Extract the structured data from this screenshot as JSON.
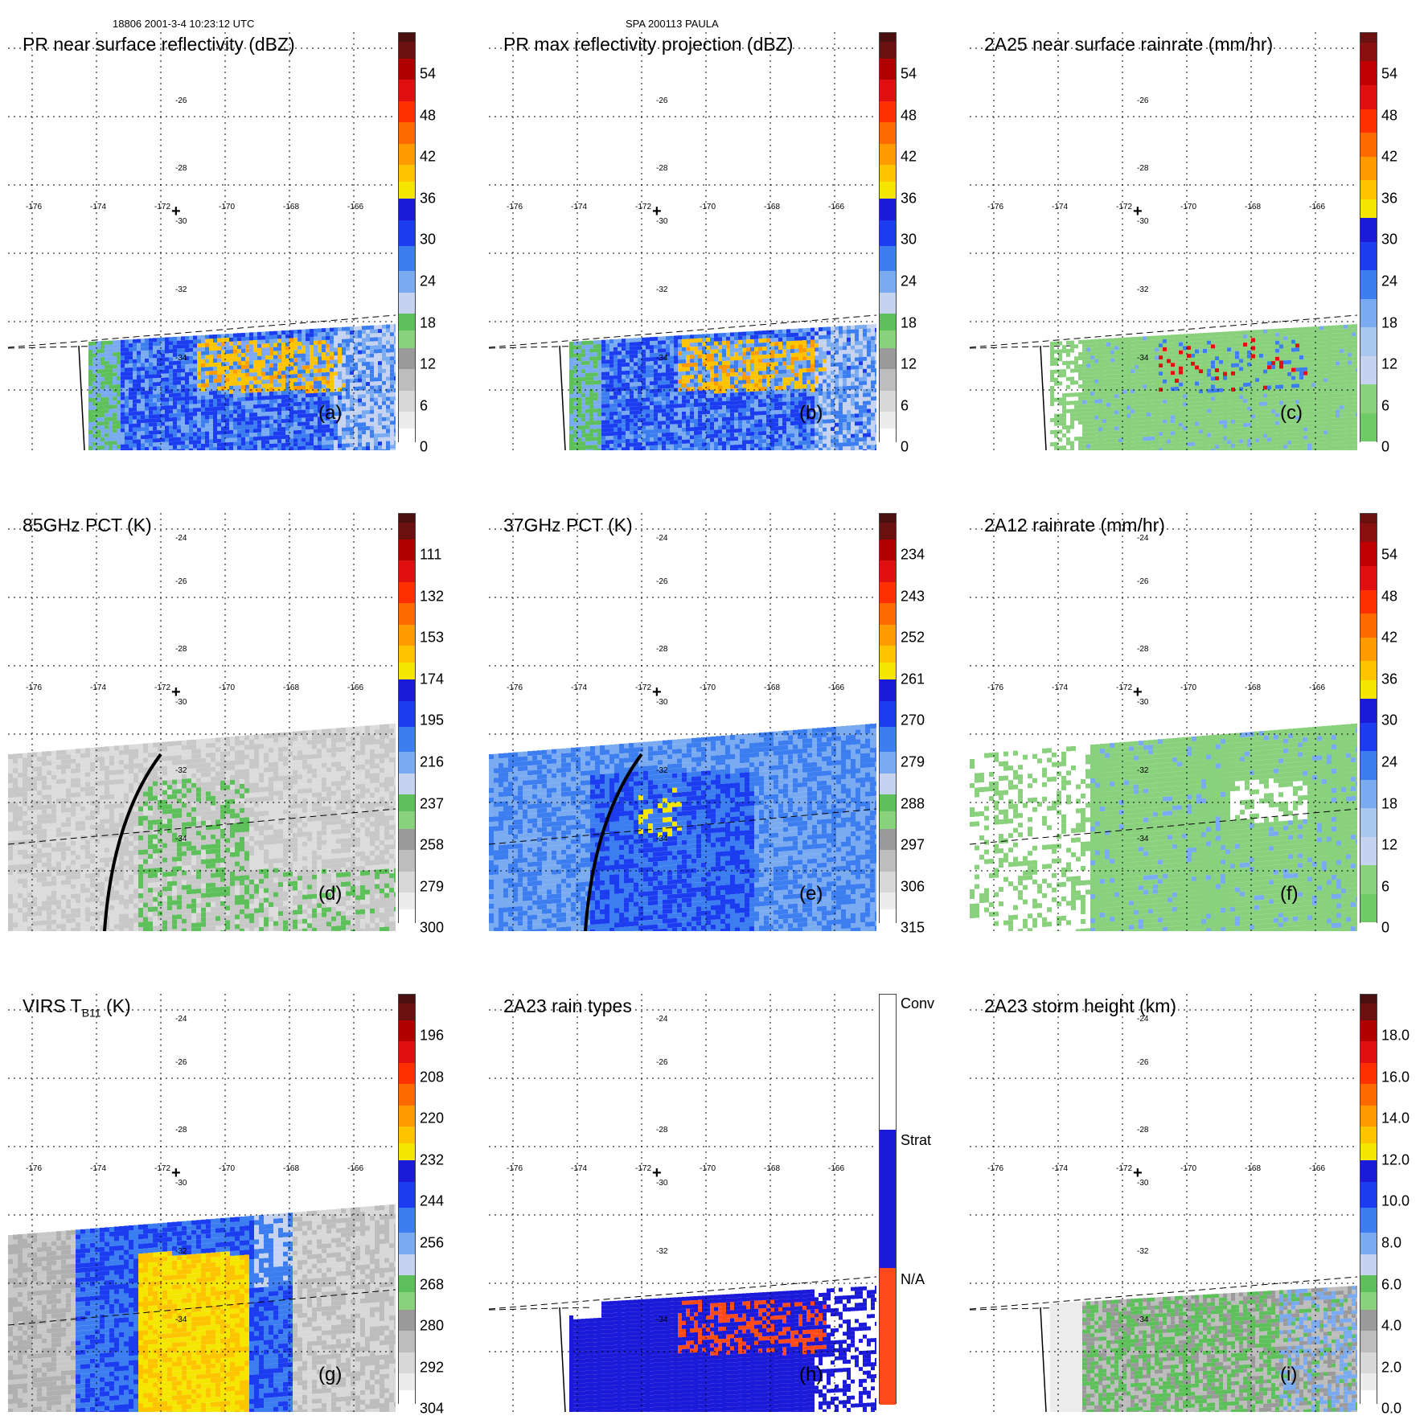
{
  "header": {
    "left": "18806 2001-3-4 10:23:12 UTC",
    "center": "SPA 200113 PAULA"
  },
  "lon_labels": [
    "-176",
    "-174",
    "-172",
    "-170",
    "-168",
    "-166"
  ],
  "lat_labels": [
    "-24",
    "-26",
    "-28",
    "-30",
    "-32",
    "-34"
  ],
  "center_marker": "+",
  "panels": [
    {
      "id": "a",
      "title": "PR near surface reflectivity (dBZ)",
      "label": "(a)",
      "ticks": [
        "54",
        "48",
        "42",
        "36",
        "30",
        "24",
        "18",
        "12",
        "6",
        "0"
      ],
      "scheme": "refl",
      "field": "pr"
    },
    {
      "id": "b",
      "title": "PR max reflectivity projection (dBZ)",
      "label": "(b)",
      "ticks": [
        "54",
        "48",
        "42",
        "36",
        "30",
        "24",
        "18",
        "12",
        "6",
        "0"
      ],
      "scheme": "refl",
      "field": "pr"
    },
    {
      "id": "c",
      "title": "2A25 near surface rainrate (mm/hr)",
      "label": "(c)",
      "ticks": [
        "54",
        "48",
        "42",
        "36",
        "30",
        "24",
        "18",
        "12",
        "6",
        "0"
      ],
      "scheme": "rain",
      "field": "pr"
    },
    {
      "id": "d",
      "title": "85GHz PCT (K)",
      "label": "(d)",
      "ticks": [
        "111",
        "132",
        "153",
        "174",
        "195",
        "216",
        "237",
        "258",
        "279",
        "300"
      ],
      "scheme": "refl",
      "field": "tmi"
    },
    {
      "id": "e",
      "title": "37GHz PCT (K)",
      "label": "(e)",
      "ticks": [
        "234",
        "243",
        "252",
        "261",
        "270",
        "279",
        "288",
        "297",
        "306",
        "315"
      ],
      "scheme": "refl",
      "field": "tmi"
    },
    {
      "id": "f",
      "title": "2A12 rainrate (mm/hr)",
      "label": "(f)",
      "ticks": [
        "54",
        "48",
        "42",
        "36",
        "30",
        "24",
        "18",
        "12",
        "6",
        "0"
      ],
      "scheme": "rain",
      "field": "tmi"
    },
    {
      "id": "g",
      "title": "VIRS T",
      "title_sub": "B11",
      "title_suffix": " (K)",
      "label": "(g)",
      "ticks": [
        "196",
        "208",
        "220",
        "232",
        "244",
        "256",
        "268",
        "280",
        "292",
        "304"
      ],
      "scheme": "refl",
      "field": "tmi"
    },
    {
      "id": "h",
      "title": "2A23 rain types",
      "label": "(h)",
      "ticks": [
        "Conv",
        "Strat",
        "N/A"
      ],
      "scheme": "types",
      "field": "pr"
    },
    {
      "id": "i",
      "title": "2A23 storm height (km)",
      "label": "(i)",
      "ticks": [
        "18.0",
        "16.0",
        "14.0",
        "12.0",
        "10.0",
        "8.0",
        "6.0",
        "4.0",
        "2.0",
        "0.0"
      ],
      "scheme": "refl",
      "field": "pr"
    }
  ]
}
